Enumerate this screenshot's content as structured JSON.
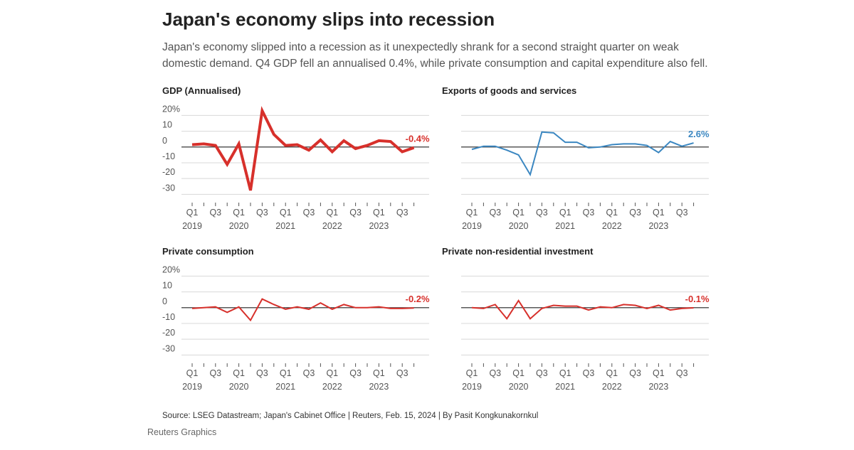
{
  "title": "Japan's economy slips into recession",
  "subtitle": [
    "Japan's economy slipped into a recession as it unexpectedly shrank for a second straight quarter on weak",
    "domestic demand. Q4 GDP fell an annualised 0.4%, while private consumption and capital expenditure also fell."
  ],
  "source": "Source: LSEG Datastream; Japan's Cabinet Office | Reuters, Feb. 15, 2024 | By Pasit Kongkunakornkul",
  "credit": "Reuters Graphics",
  "chart_data": [
    {
      "type": "line",
      "title": "GDP (Annualised)",
      "categories": [
        "Q1",
        null,
        "Q3",
        null,
        "Q1",
        null,
        "Q3",
        null,
        "Q1",
        null,
        "Q3",
        null,
        "Q1",
        null,
        "Q3",
        null,
        "Q1",
        null,
        "Q3",
        null
      ],
      "years": [
        "2019",
        "2020",
        "2021",
        "2022",
        "2023"
      ],
      "series": [
        {
          "name": "GDP",
          "color": "#d7302b",
          "linewidth": 4,
          "values": [
            1.5,
            2,
            1,
            -11,
            2,
            -27.5,
            23,
            8,
            1,
            1.5,
            -2,
            4.5,
            -3,
            4,
            -1,
            1,
            4,
            3.5,
            -3,
            -0.4
          ],
          "value_labels": [
            null,
            null,
            null,
            null,
            null,
            null,
            null,
            null,
            null,
            null,
            null,
            null,
            null,
            null,
            null,
            null,
            null,
            null,
            null,
            "-0.4%"
          ]
        }
      ],
      "ylim": [
        -33,
        22
      ],
      "yticks": [
        {
          "value": 20,
          "label": "20%"
        },
        10,
        0,
        -10,
        -20,
        -30
      ],
      "ytick_labels": true,
      "grid": true
    },
    {
      "type": "line",
      "title": "Exports of goods and services",
      "categories": [
        "Q1",
        null,
        "Q3",
        null,
        "Q1",
        null,
        "Q3",
        null,
        "Q1",
        null,
        "Q3",
        null,
        "Q1",
        null,
        "Q3",
        null,
        "Q1",
        null,
        "Q3",
        null
      ],
      "years": [
        "2019",
        "2020",
        "2021",
        "2022",
        "2023"
      ],
      "series": [
        {
          "name": "Exports",
          "color": "#3b87c1",
          "linewidth": 2,
          "values": [
            -1.5,
            0.5,
            0.5,
            -2,
            -5,
            -17.5,
            9.5,
            9,
            3,
            3,
            -0.5,
            0,
            1.5,
            2,
            2,
            1,
            -3.5,
            3.5,
            0.5,
            2.6
          ],
          "value_labels": [
            null,
            null,
            null,
            null,
            null,
            null,
            null,
            null,
            null,
            null,
            null,
            null,
            null,
            null,
            null,
            null,
            null,
            null,
            null,
            "2.6%"
          ]
        }
      ],
      "ylim": [
        -33,
        22
      ],
      "yticks": [
        20,
        10,
        0,
        -10,
        -20,
        -30
      ],
      "ytick_labels": false,
      "grid": true
    },
    {
      "type": "line",
      "title": "Private consumption",
      "categories": [
        "Q1",
        null,
        "Q3",
        null,
        "Q1",
        null,
        "Q3",
        null,
        "Q1",
        null,
        "Q3",
        null,
        "Q1",
        null,
        "Q3",
        null,
        "Q1",
        null,
        "Q3",
        null
      ],
      "years": [
        "2019",
        "2020",
        "2021",
        "2022",
        "2023"
      ],
      "series": [
        {
          "name": "Private consumption",
          "color": "#d7302b",
          "linewidth": 2,
          "values": [
            -0.5,
            0,
            0.5,
            -3,
            0.5,
            -8,
            5.5,
            2,
            -1,
            0.5,
            -1,
            3,
            -1,
            2,
            0,
            0,
            0.5,
            -0.5,
            -0.5,
            -0.2
          ],
          "value_labels": [
            null,
            null,
            null,
            null,
            null,
            null,
            null,
            null,
            null,
            null,
            null,
            null,
            null,
            null,
            null,
            null,
            null,
            null,
            null,
            "-0.2%"
          ]
        }
      ],
      "ylim": [
        -33,
        22
      ],
      "yticks": [
        {
          "value": 20,
          "label": "20%"
        },
        10,
        0,
        -10,
        -20,
        -30
      ],
      "ytick_labels": true,
      "grid": true
    },
    {
      "type": "line",
      "title": "Private non-residential investment",
      "categories": [
        "Q1",
        null,
        "Q3",
        null,
        "Q1",
        null,
        "Q3",
        null,
        "Q1",
        null,
        "Q3",
        null,
        "Q1",
        null,
        "Q3",
        null,
        "Q1",
        null,
        "Q3",
        null
      ],
      "years": [
        "2019",
        "2020",
        "2021",
        "2022",
        "2023"
      ],
      "series": [
        {
          "name": "Private non-residential investment",
          "color": "#d7302b",
          "linewidth": 2,
          "values": [
            0,
            -0.5,
            2,
            -7,
            4.5,
            -7,
            -0.5,
            1.5,
            1,
            1,
            -1.5,
            0.5,
            0,
            2,
            1.5,
            -0.5,
            1.5,
            -1.5,
            -0.5,
            -0.1
          ],
          "value_labels": [
            null,
            null,
            null,
            null,
            null,
            null,
            null,
            null,
            null,
            null,
            null,
            null,
            null,
            null,
            null,
            null,
            null,
            null,
            null,
            "-0.1%"
          ]
        }
      ],
      "ylim": [
        -33,
        22
      ],
      "yticks": [
        20,
        10,
        0,
        -10,
        -20,
        -30
      ],
      "ytick_labels": false,
      "grid": true
    }
  ]
}
